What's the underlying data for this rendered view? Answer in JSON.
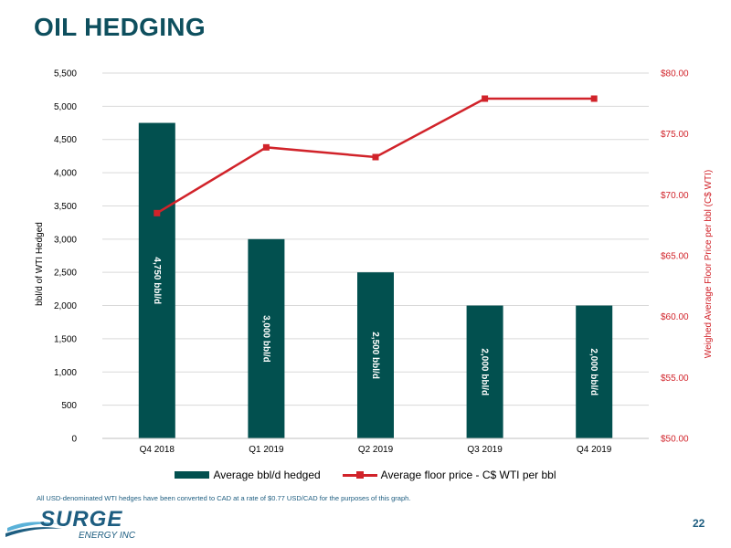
{
  "page": {
    "title": "OIL HEDGING",
    "footnote": "All USD-denominated WTI hedges have been converted to CAD at a rate of $0.77 USD/CAD for the purposes of this graph.",
    "page_number": "22",
    "logo": {
      "name": "SURGE",
      "subtitle": "ENERGY INC"
    }
  },
  "colors": {
    "bar": "#02504f",
    "line": "#d1232a",
    "title": "#0e4f5e",
    "right_axis": "#d1232a"
  },
  "chart_data": {
    "type": "bar",
    "title": "",
    "categories": [
      "Q4 2018",
      "Q1 2019",
      "Q2 2019",
      "Q3 2019",
      "Q4 2019"
    ],
    "ylabel": "bbl/d of WTI Hedged",
    "ylim": [
      0,
      5500
    ],
    "yticks": [
      "0",
      "500",
      "1,000",
      "1,500",
      "2,000",
      "2,500",
      "3,000",
      "3,500",
      "4,000",
      "4,500",
      "5,000",
      "5,500"
    ],
    "y2label": "Weighed Average Floor Price per bbl (C$ WTI)",
    "y2lim": [
      50,
      80
    ],
    "y2ticks": [
      "$50.00",
      "$55.00",
      "$60.00",
      "$65.00",
      "$70.00",
      "$75.00",
      "$80.00"
    ],
    "legend_position": "bottom",
    "series": [
      {
        "name": "Average bbl/d hedged",
        "type": "bar",
        "axis": "left",
        "values": [
          4750,
          3000,
          2500,
          2000,
          2000
        ],
        "data_labels": [
          "4,750 bbl/d",
          "3,000 bbl/d",
          "2,500 bbl/d",
          "2,000 bbl/d",
          "2,000 bbl/d"
        ]
      },
      {
        "name": "Average floor price - C$ WTI per bbl",
        "type": "line",
        "axis": "right",
        "values": [
          68.5,
          73.9,
          73.1,
          77.9,
          77.9
        ]
      }
    ]
  }
}
